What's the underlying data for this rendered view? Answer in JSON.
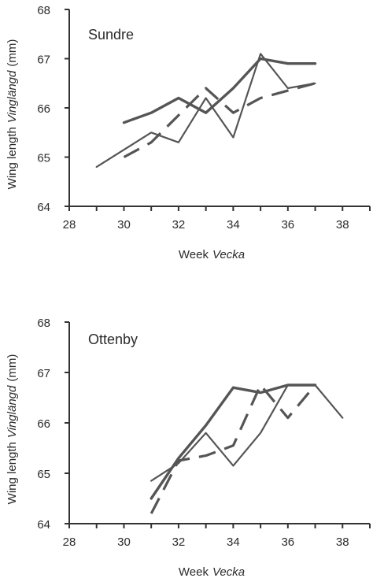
{
  "chart_data": [
    {
      "type": "line",
      "title": "Sundre",
      "xlabel": "Week",
      "xlabel_italic": "Vecka",
      "ylabel": "Wing length",
      "ylabel_italic": "Vinglängd",
      "ylabel_unit": "(mm)",
      "xlim": [
        28,
        39
      ],
      "ylim": [
        64,
        68
      ],
      "xticks": [
        "28",
        "30",
        "32",
        "34",
        "36",
        "38"
      ],
      "yticks": [
        "64",
        "65",
        "66",
        "67",
        "68"
      ],
      "series": [
        {
          "style": "thin",
          "x": [
            29,
            31,
            32,
            33,
            34,
            35,
            36,
            37
          ],
          "y": [
            64.8,
            65.5,
            65.3,
            66.2,
            65.4,
            67.1,
            66.4,
            66.5
          ]
        },
        {
          "style": "thick",
          "x": [
            30,
            31,
            32,
            33,
            34,
            35,
            36,
            37
          ],
          "y": [
            65.7,
            65.9,
            66.2,
            65.9,
            66.4,
            67.0,
            66.9,
            66.9
          ]
        },
        {
          "style": "dashed",
          "x": [
            30,
            31,
            32,
            33,
            34,
            35,
            36,
            37
          ],
          "y": [
            65.0,
            65.3,
            65.85,
            66.4,
            65.9,
            66.2,
            66.35,
            66.5
          ]
        }
      ]
    },
    {
      "type": "line",
      "title": "Ottenby",
      "xlabel": "Week",
      "xlabel_italic": "Vecka",
      "ylabel": "Wing length",
      "ylabel_italic": "Vinglängd",
      "ylabel_unit": "(mm)",
      "xlim": [
        28,
        39
      ],
      "ylim": [
        64,
        68
      ],
      "xticks": [
        "28",
        "30",
        "32",
        "34",
        "36",
        "38"
      ],
      "yticks": [
        "64",
        "65",
        "66",
        "67",
        "68"
      ],
      "series": [
        {
          "style": "thin",
          "x": [
            31,
            32,
            33,
            34,
            35,
            36,
            37,
            38
          ],
          "y": [
            64.85,
            65.2,
            65.8,
            65.15,
            65.8,
            66.75,
            66.75,
            66.1
          ]
        },
        {
          "style": "thick",
          "x": [
            31,
            32,
            33,
            34,
            35,
            36,
            37
          ],
          "y": [
            64.5,
            65.3,
            65.95,
            66.7,
            66.6,
            66.75,
            66.75
          ]
        },
        {
          "style": "dashed",
          "x": [
            31,
            32,
            33,
            34,
            35,
            36,
            37
          ],
          "y": [
            64.2,
            65.25,
            65.35,
            65.55,
            66.75,
            66.1,
            66.75
          ]
        }
      ]
    }
  ]
}
